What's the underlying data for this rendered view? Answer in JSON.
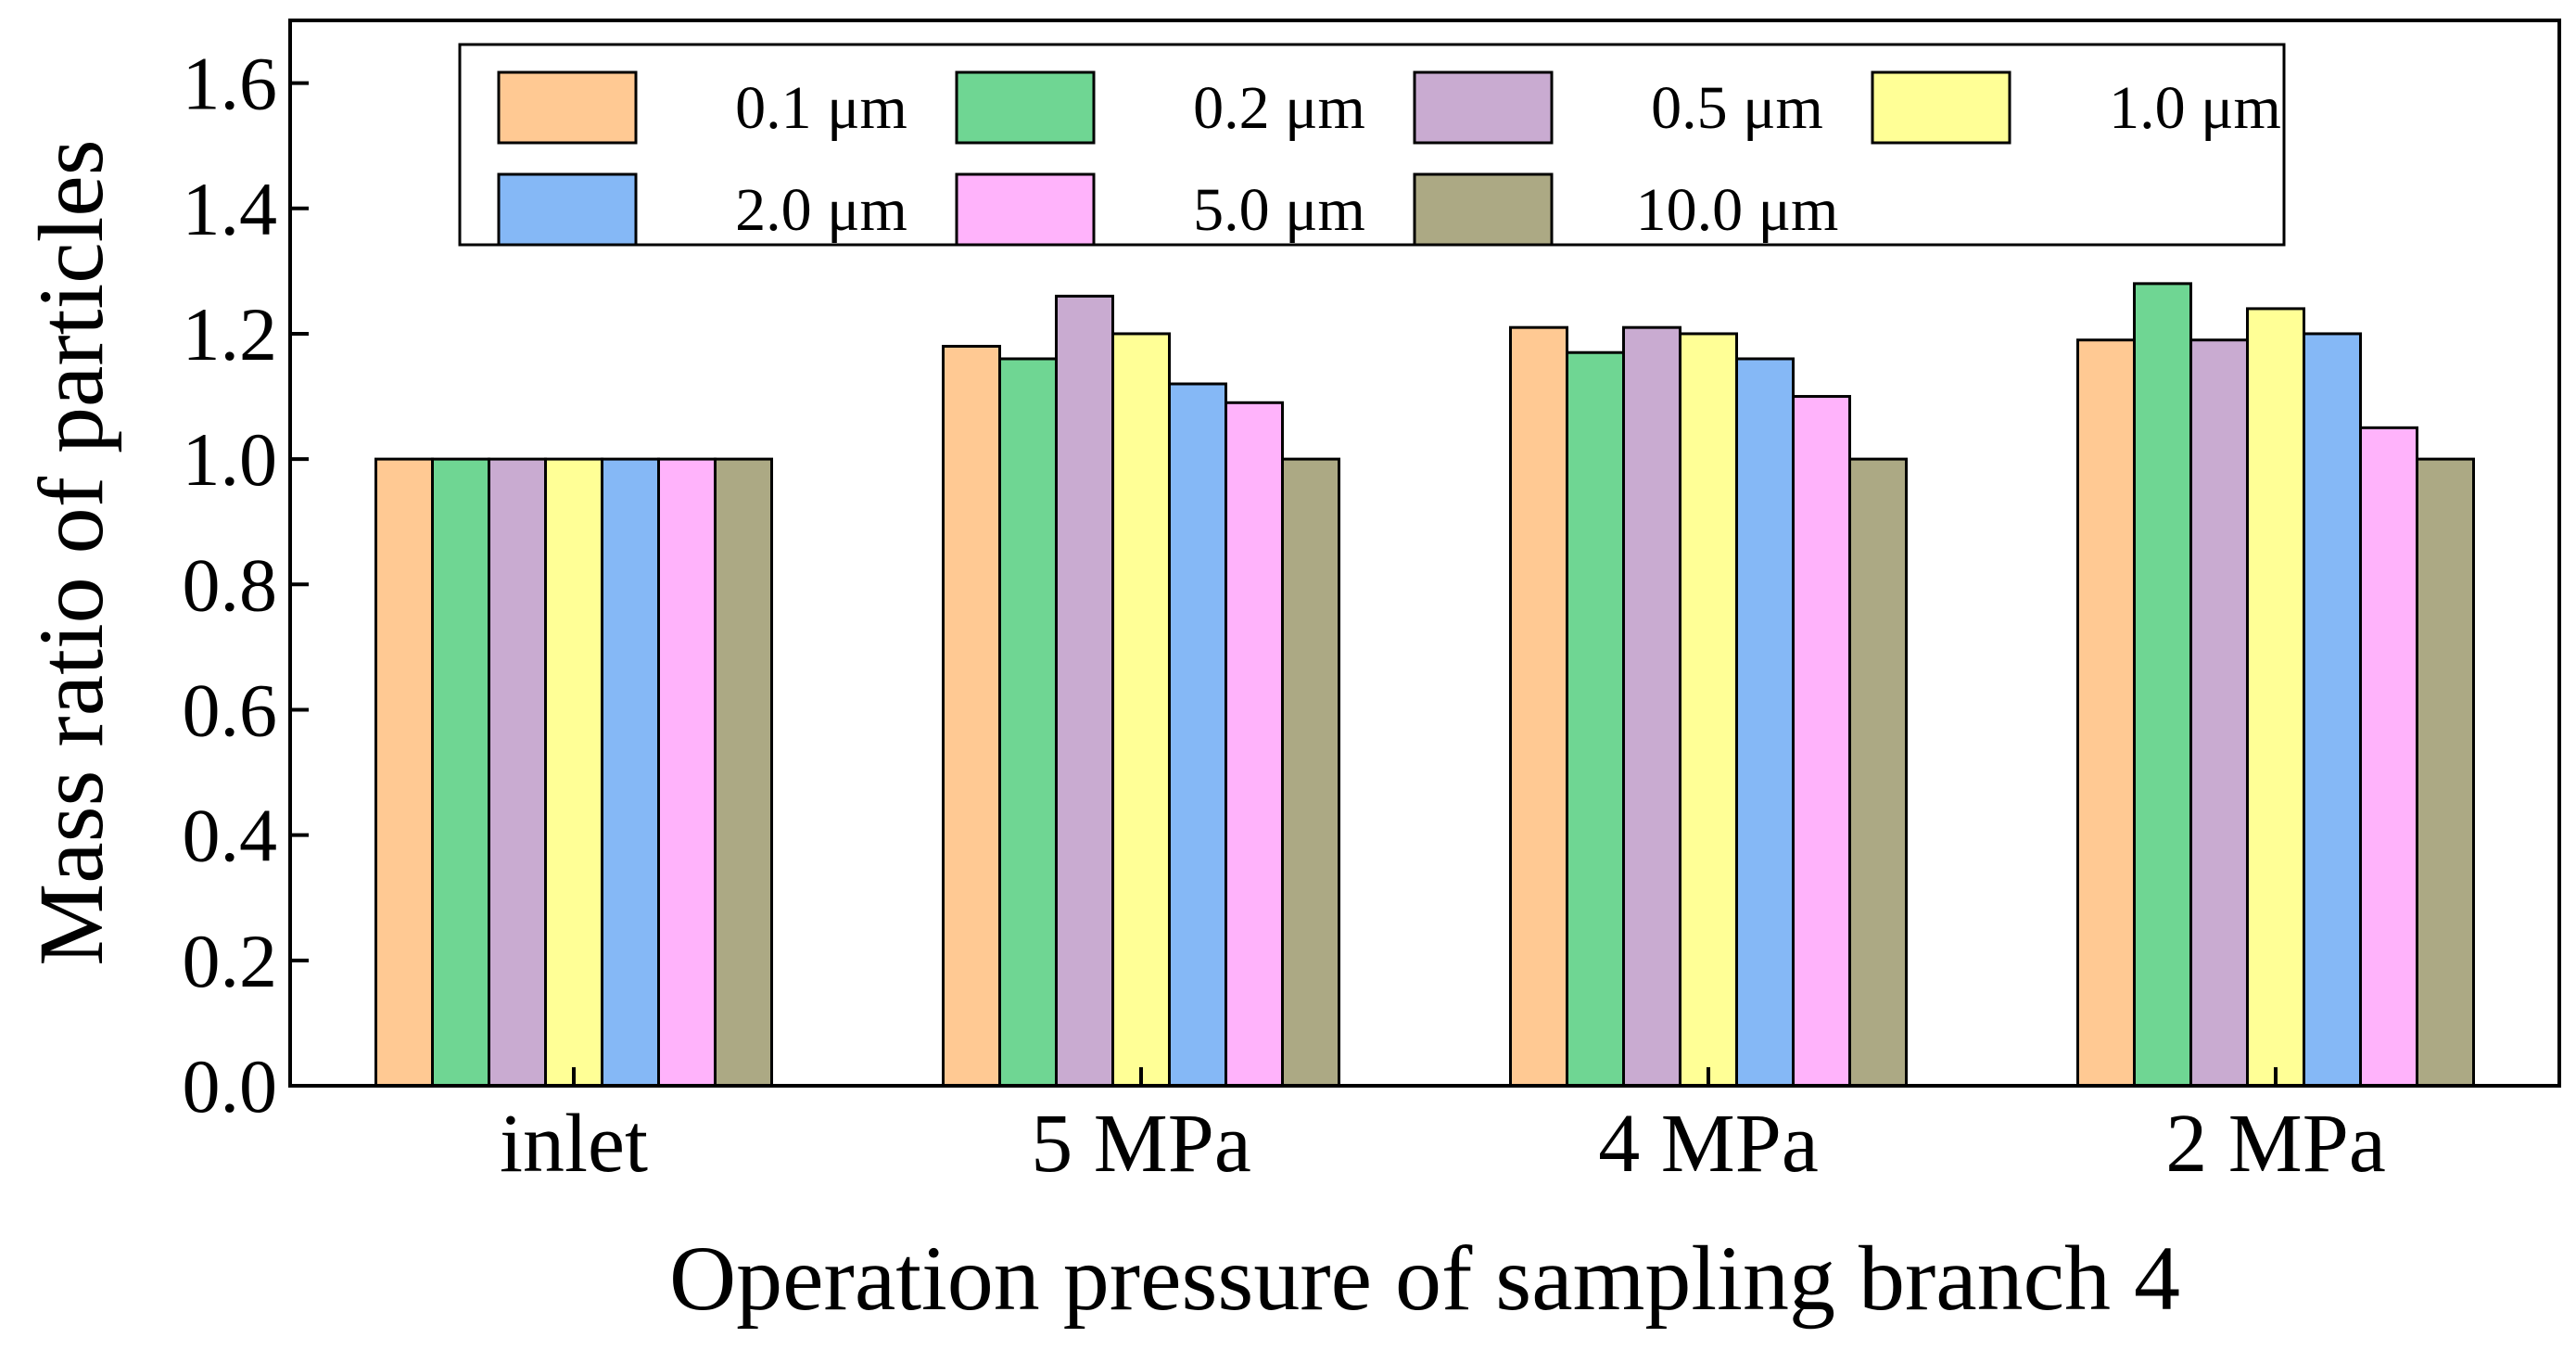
{
  "chart_data": {
    "type": "bar",
    "title": "",
    "xlabel": "Operation pressure of sampling branch 4",
    "ylabel": "Mass ratio of particles",
    "ylim": [
      0,
      1.7
    ],
    "yticks": [
      "0.0",
      "0.2",
      "0.4",
      "0.6",
      "0.8",
      "1.0",
      "1.2",
      "1.4",
      "1.6"
    ],
    "grid": false,
    "legend_position": "top",
    "categories": [
      "inlet",
      "5 MPa",
      "4 MPa",
      "2 MPa"
    ],
    "series": [
      {
        "name": "0.1 μm",
        "color": "#ffc993",
        "values": [
          1.0,
          1.18,
          1.21,
          1.19
        ]
      },
      {
        "name": "0.2 μm",
        "color": "#6fd693",
        "values": [
          1.0,
          1.16,
          1.17,
          1.28
        ]
      },
      {
        "name": "0.5 μm",
        "color": "#c9abd1",
        "values": [
          1.0,
          1.26,
          1.21,
          1.19
        ]
      },
      {
        "name": "1.0 μm",
        "color": "#ffff96",
        "values": [
          1.0,
          1.2,
          1.2,
          1.24
        ]
      },
      {
        "name": "2.0 μm",
        "color": "#85b8f6",
        "values": [
          1.0,
          1.12,
          1.16,
          1.2
        ]
      },
      {
        "name": "5.0 μm",
        "color": "#ffb3fb",
        "values": [
          1.0,
          1.09,
          1.1,
          1.05
        ]
      },
      {
        "name": "10.0 μm",
        "color": "#aca984",
        "values": [
          1.0,
          1.0,
          1.0,
          1.0
        ]
      }
    ]
  }
}
